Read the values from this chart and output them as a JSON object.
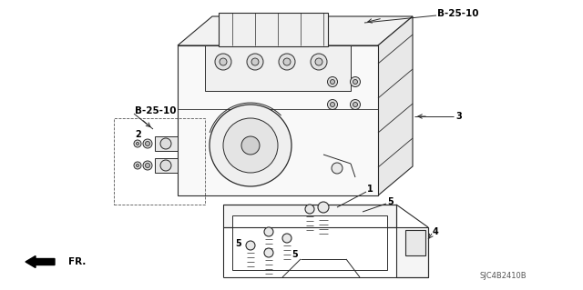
{
  "bg_color": "#ffffff",
  "line_color": "#2a2a2a",
  "labels": {
    "B25_top": "B-25-10",
    "B25_mid": "B-25-10",
    "part1": "1",
    "part2": "2",
    "part3": "3",
    "part4": "4",
    "part5a": "5",
    "part5b": "5",
    "part5c": "5",
    "fr": "FR.",
    "part_num": "SJC4B2410B"
  },
  "figsize": [
    6.4,
    3.19
  ],
  "dpi": 100
}
